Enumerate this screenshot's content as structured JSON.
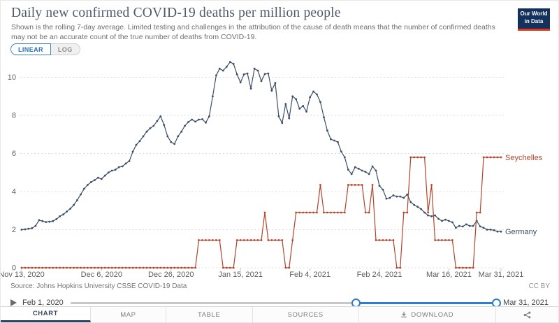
{
  "header": {
    "title": "Daily new confirmed COVID-19 deaths per million people",
    "subtitle": "Shown is the rolling 7-day average. Limited testing and challenges in the attribution of the cause of death means that the number of confirmed deaths may not be an accurate count of the true number of deaths from COVID-19.",
    "logo_line1": "Our World",
    "logo_line2": "in Data"
  },
  "controls": {
    "linear_label": "LINEAR",
    "log_label": "LOG",
    "active_scale": "LINEAR"
  },
  "chart_data": {
    "type": "line",
    "title": "Daily new confirmed COVID-19 deaths per million people",
    "x_start_date": "Nov 13, 2020",
    "x_end_date": "Mar 31, 2021",
    "x_range_days": [
      0,
      138
    ],
    "ylim": [
      0,
      10.8
    ],
    "y_ticks": [
      0,
      2,
      4,
      6,
      8,
      10
    ],
    "grid": true,
    "legend_position": "right-of-line-end",
    "x_ticks": [
      {
        "day": 0,
        "label": "Nov 13, 2020"
      },
      {
        "day": 23,
        "label": "Dec 6, 2020"
      },
      {
        "day": 43,
        "label": "Dec 26, 2020"
      },
      {
        "day": 63,
        "label": "Jan 15, 2021"
      },
      {
        "day": 83,
        "label": "Feb 4, 2021"
      },
      {
        "day": 103,
        "label": "Feb 24, 2021"
      },
      {
        "day": 123,
        "label": "Mar 16, 2021"
      },
      {
        "day": 138,
        "label": "Mar 31, 2021"
      }
    ],
    "series": [
      {
        "name": "Germany",
        "color": "#3c4e66",
        "values": [
          2.0,
          2.02,
          2.05,
          2.08,
          2.2,
          2.5,
          2.45,
          2.4,
          2.42,
          2.45,
          2.55,
          2.7,
          2.8,
          2.95,
          3.1,
          3.3,
          3.55,
          3.85,
          4.15,
          4.35,
          4.5,
          4.6,
          4.73,
          4.66,
          4.84,
          5.0,
          5.1,
          5.15,
          5.28,
          5.32,
          5.47,
          5.6,
          6.1,
          6.45,
          6.65,
          6.9,
          7.15,
          7.32,
          7.45,
          7.7,
          7.95,
          7.5,
          6.9,
          6.6,
          6.5,
          6.9,
          7.15,
          7.45,
          7.65,
          7.78,
          7.67,
          7.78,
          7.8,
          7.62,
          7.95,
          9.0,
          10.1,
          10.45,
          10.35,
          10.55,
          10.8,
          10.7,
          10.15,
          9.73,
          10.15,
          10.2,
          9.4,
          10.45,
          10.35,
          9.8,
          10.17,
          10.2,
          9.3,
          9.7,
          7.95,
          7.6,
          8.6,
          7.85,
          9.0,
          8.85,
          8.35,
          8.5,
          8.2,
          8.95,
          9.25,
          9.1,
          8.7,
          7.9,
          7.2,
          6.75,
          6.68,
          6.6,
          6.1,
          5.8,
          5.15,
          4.92,
          5.28,
          5.2,
          5.1,
          5.03,
          4.92,
          5.32,
          5.1,
          4.3,
          4.1,
          3.63,
          3.67,
          3.8,
          3.74,
          3.74,
          3.67,
          3.85,
          3.45,
          3.3,
          3.2,
          3.08,
          2.9,
          2.75,
          2.7,
          2.75,
          2.57,
          2.46,
          2.53,
          2.46,
          2.39,
          2.1,
          2.2,
          2.17,
          2.28,
          2.2,
          2.2,
          2.46,
          2.17,
          2.1,
          2.0,
          2.0,
          1.97,
          1.9,
          1.9
        ]
      },
      {
        "name": "Seychelles",
        "color": "#b5432b",
        "values": [
          0,
          0,
          0,
          0,
          0,
          0,
          0,
          0,
          0,
          0,
          0,
          0,
          0,
          0,
          0,
          0,
          0,
          0,
          0,
          0,
          0,
          0,
          0,
          0,
          0,
          0,
          0,
          0,
          0,
          0,
          0,
          0,
          0,
          0,
          0,
          0,
          0,
          0,
          0,
          0,
          0,
          0,
          0,
          0,
          0,
          0,
          0,
          0,
          0,
          0,
          0,
          1.45,
          1.45,
          1.45,
          1.45,
          1.45,
          1.45,
          1.45,
          0,
          0,
          0,
          0,
          1.45,
          1.45,
          1.45,
          1.45,
          1.45,
          1.45,
          1.45,
          1.45,
          2.9,
          1.45,
          1.45,
          1.45,
          1.45,
          1.45,
          0,
          0,
          1.45,
          2.9,
          2.9,
          2.9,
          2.9,
          2.9,
          2.9,
          2.9,
          4.35,
          2.9,
          2.9,
          2.9,
          2.9,
          2.9,
          2.9,
          2.9,
          4.35,
          4.35,
          4.35,
          4.35,
          4.35,
          2.9,
          2.9,
          4.35,
          1.45,
          1.45,
          1.45,
          1.45,
          1.45,
          1.45,
          0,
          0,
          2.9,
          2.9,
          5.8,
          5.8,
          5.8,
          5.8,
          5.8,
          2.9,
          4.35,
          1.45,
          1.45,
          1.45,
          1.45,
          1.45,
          1.45,
          0,
          0,
          0,
          0,
          0,
          0,
          2.9,
          2.9,
          5.8,
          5.8,
          5.8,
          5.8,
          5.8,
          5.8
        ]
      }
    ]
  },
  "footer": {
    "source": "Source: Johns Hopkins University CSSE COVID-19 Data",
    "license": "CC BY"
  },
  "timeline": {
    "start_label": "Feb 1, 2020",
    "end_label": "Mar 31, 2021",
    "selection_start_frac": 0.67,
    "selection_end_frac": 1.0
  },
  "tabs": [
    {
      "label": "CHART",
      "active": true
    },
    {
      "label": "MAP"
    },
    {
      "label": "TABLE"
    },
    {
      "label": "SOURCES"
    },
    {
      "label": "DOWNLOAD",
      "icon": "download-icon"
    },
    {
      "label": "",
      "icon": "share-icon"
    }
  ]
}
